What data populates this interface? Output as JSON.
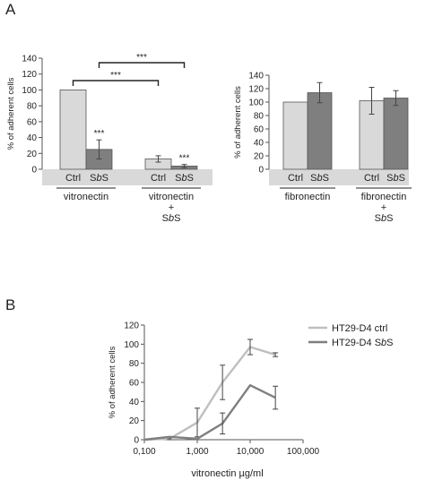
{
  "panels": {
    "a_label": "A",
    "b_label": "B"
  },
  "chart_data": [
    {
      "type": "bar",
      "panel": "A",
      "ylabel": "% of adherent cells",
      "ylim": [
        0,
        140
      ],
      "yticks": [
        0,
        20,
        40,
        60,
        80,
        100,
        120,
        140
      ],
      "groups": [
        {
          "label_lines": [
            "vitronectin"
          ],
          "bars": [
            {
              "name": "Ctrl",
              "value": 100,
              "error": 0,
              "sig": ""
            },
            {
              "name": "SbS",
              "value": 25,
              "error": 12,
              "sig": "***"
            }
          ]
        },
        {
          "label_lines": [
            "vitronectin",
            "+",
            "SbS"
          ],
          "bars": [
            {
              "name": "Ctrl",
              "value": 13,
              "error": 4,
              "sig": ""
            },
            {
              "name": "SbS",
              "value": 4,
              "error": 2,
              "sig": "***"
            }
          ]
        }
      ],
      "comparisons": [
        {
          "from": [
            0,
            0
          ],
          "to": [
            1,
            0
          ],
          "label": "***"
        },
        {
          "from": [
            0,
            1
          ],
          "to": [
            1,
            1
          ],
          "label": "***"
        }
      ],
      "colors": {
        "ctrl": "#d9d9d9",
        "sbs": "#7f7f7f"
      }
    },
    {
      "type": "bar",
      "panel": "A",
      "ylabel": "% of adherent cells",
      "ylim": [
        0,
        140
      ],
      "yticks": [
        0,
        20,
        40,
        60,
        80,
        100,
        120,
        140
      ],
      "groups": [
        {
          "label_lines": [
            "fibronectin"
          ],
          "bars": [
            {
              "name": "Ctrl",
              "value": 100,
              "error": 0,
              "sig": ""
            },
            {
              "name": "SbS",
              "value": 114,
              "error": 15,
              "sig": ""
            }
          ]
        },
        {
          "label_lines": [
            "fibronectin",
            "+",
            "SbS"
          ],
          "bars": [
            {
              "name": "Ctrl",
              "value": 102,
              "error": 20,
              "sig": ""
            },
            {
              "name": "SbS",
              "value": 106,
              "error": 11,
              "sig": ""
            }
          ]
        }
      ],
      "comparisons": [],
      "colors": {
        "ctrl": "#d9d9d9",
        "sbs": "#7f7f7f"
      }
    },
    {
      "type": "line",
      "panel": "B",
      "xlabel": "vitronectin µg/ml",
      "ylabel": "% of adherent cells",
      "xscale": "log",
      "xlim": [
        0.1,
        100
      ],
      "xticks": [
        0.1,
        1,
        10,
        100
      ],
      "xtick_labels": [
        "0,100",
        "1,000",
        "10,000",
        "100,000"
      ],
      "ylim": [
        0,
        120
      ],
      "yticks": [
        0,
        20,
        40,
        60,
        80,
        100,
        120
      ],
      "legend_position": "top-right",
      "series": [
        {
          "name": "HT29-D4 ctrl",
          "color": "#bfbfbf",
          "x": [
            0.1,
            0.3,
            1,
            3,
            10,
            30
          ],
          "y": [
            0,
            1,
            18,
            60,
            97,
            89
          ],
          "err": [
            0,
            1,
            15,
            18,
            8,
            2
          ]
        },
        {
          "name": "HT29-D4 SbS",
          "color": "#7f7f7f",
          "x": [
            0.1,
            0.3,
            1,
            3,
            10,
            30
          ],
          "y": [
            0,
            3,
            1,
            17,
            57,
            44
          ],
          "err": [
            0,
            0,
            0,
            11,
            0,
            12
          ]
        }
      ]
    }
  ]
}
